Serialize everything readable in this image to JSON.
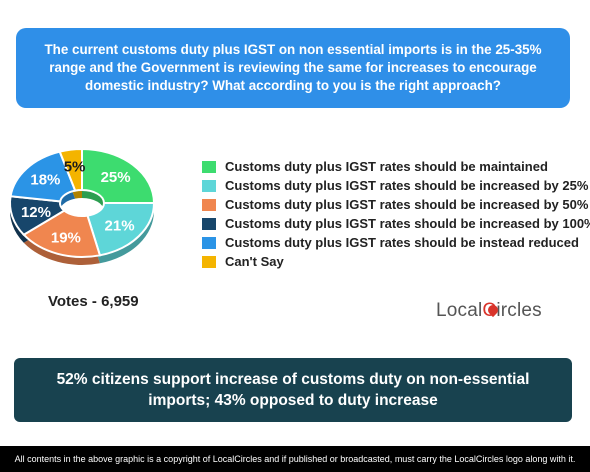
{
  "question": "The current customs duty plus IGST on non essential imports is in the 25-35% range and the Government is reviewing the same for increases to encourage domestic industry? What according to you is the right approach?",
  "votes_label": "Votes - 6,959",
  "logo": {
    "prefix": "Local",
    "c": "C",
    "suffix": "ircles"
  },
  "finding": "52% citizens support increase of customs duty on non-essential imports; 43% opposed to duty increase",
  "footer": "All contents in the above graphic is a copyright of LocalCircles and if published or broadcasted, must carry the LocalCircles logo along with it.",
  "colors": {
    "question_bg": "#2f8fe8",
    "finding_bg": "#18424f",
    "footer_bg": "#000000",
    "logo_accent": "#d9342b"
  },
  "chart_data": {
    "type": "pie",
    "style": "donut",
    "categories": [
      "Customs duty plus IGST rates should be maintained",
      "Customs duty plus IGST rates should be increased by 25%",
      "Customs duty plus IGST rates should be increased by 50%",
      "Customs duty plus IGST rates should be increased by 100%",
      "Customs duty plus IGST rates should be instead reduced",
      "Can't Say"
    ],
    "values": [
      25,
      21,
      19,
      12,
      18,
      5
    ],
    "labels": [
      "25%",
      "21%",
      "19%",
      "12%",
      "18%",
      "5%"
    ],
    "colors": [
      "#3ddc6f",
      "#5ed6d8",
      "#f0864f",
      "#17466b",
      "#2b94e6",
      "#f4b400"
    ],
    "legend_position": "right"
  }
}
